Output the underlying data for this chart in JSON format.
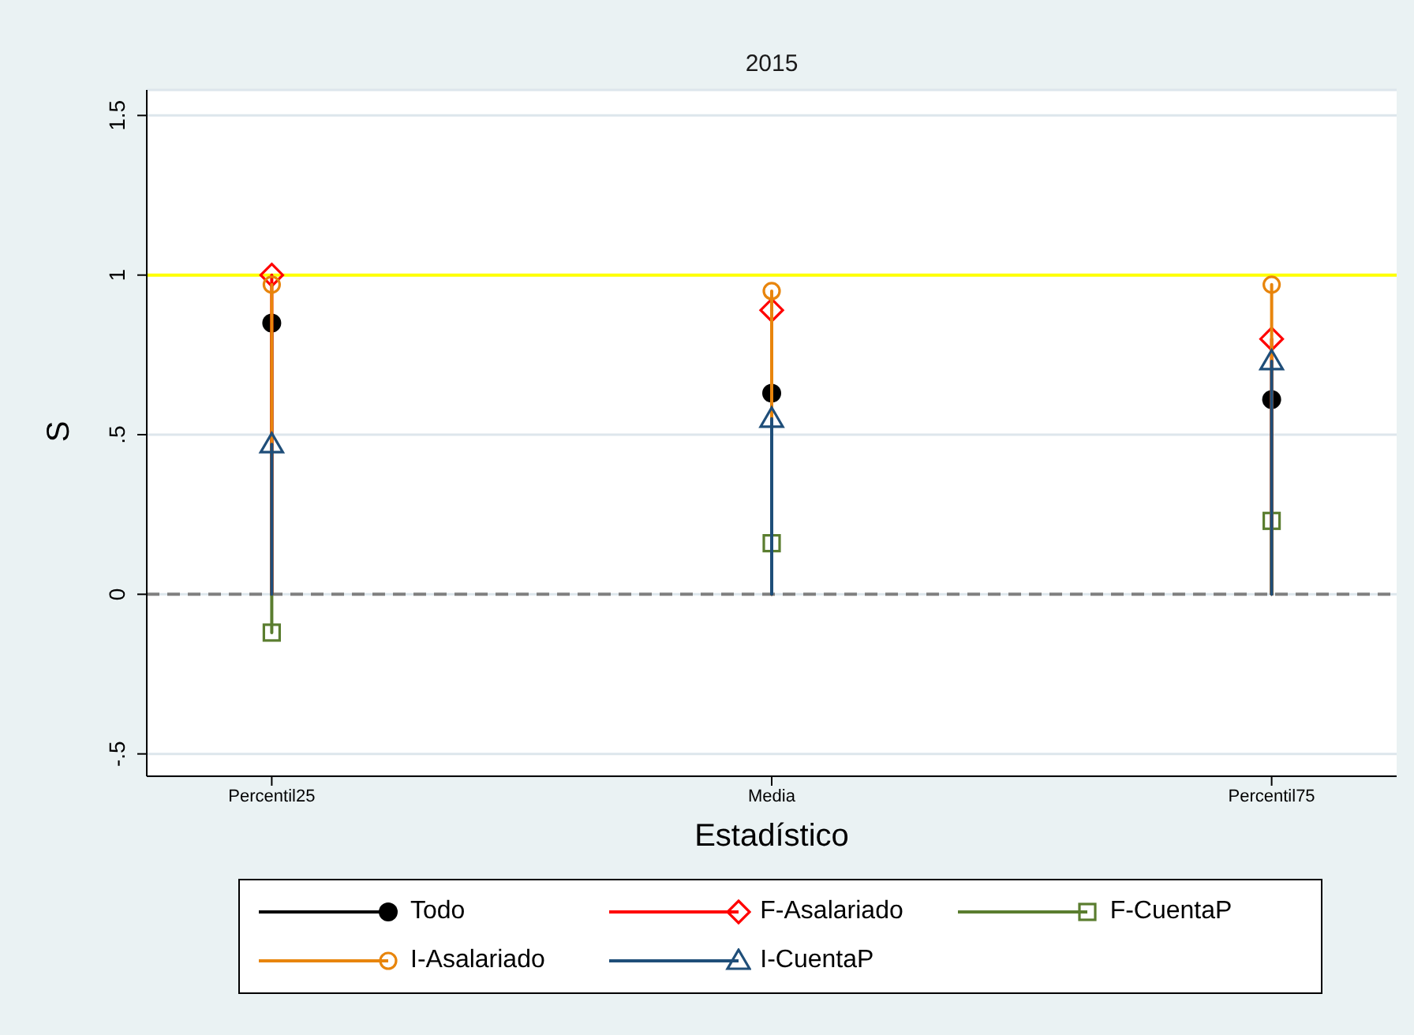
{
  "chart_data": {
    "type": "lollipop",
    "title": "2015",
    "xlabel": "Estadístico",
    "ylabel": "S",
    "categories": [
      "Percentil25",
      "Media",
      "Percentil75"
    ],
    "series": [
      {
        "name": "Todo",
        "color": "#000000",
        "marker": "circle",
        "values": [
          0.85,
          0.63,
          0.61
        ]
      },
      {
        "name": "F-Asalariado",
        "color": "#ff0000",
        "marker": "diamond",
        "values": [
          1.0,
          0.89,
          0.8
        ]
      },
      {
        "name": "F-CuentaP",
        "color": "#5a7d2f",
        "marker": "square",
        "values": [
          -0.12,
          0.16,
          0.23
        ]
      },
      {
        "name": "I-Asalariado",
        "color": "#e8850c",
        "marker": "circle",
        "values": [
          0.97,
          0.95,
          0.97
        ]
      },
      {
        "name": "I-CuentaP",
        "color": "#1f4e79",
        "marker": "triangle",
        "values": [
          0.47,
          0.55,
          0.73
        ]
      }
    ],
    "ylim": [
      -0.57,
      1.58
    ],
    "yticks": [
      {
        "value": -0.5,
        "label": "-.5"
      },
      0,
      {
        "value": 0.5,
        "label": ".5"
      },
      1,
      1.5
    ],
    "grid": "y",
    "legend": "bottom",
    "ref_lines": [
      {
        "axis": "y",
        "value": 1,
        "label": null,
        "color": "#ffff00",
        "line_style": "solid"
      },
      {
        "axis": "y",
        "value": 0,
        "label": null,
        "color": "#808080",
        "line_style": "dashed"
      }
    ]
  }
}
